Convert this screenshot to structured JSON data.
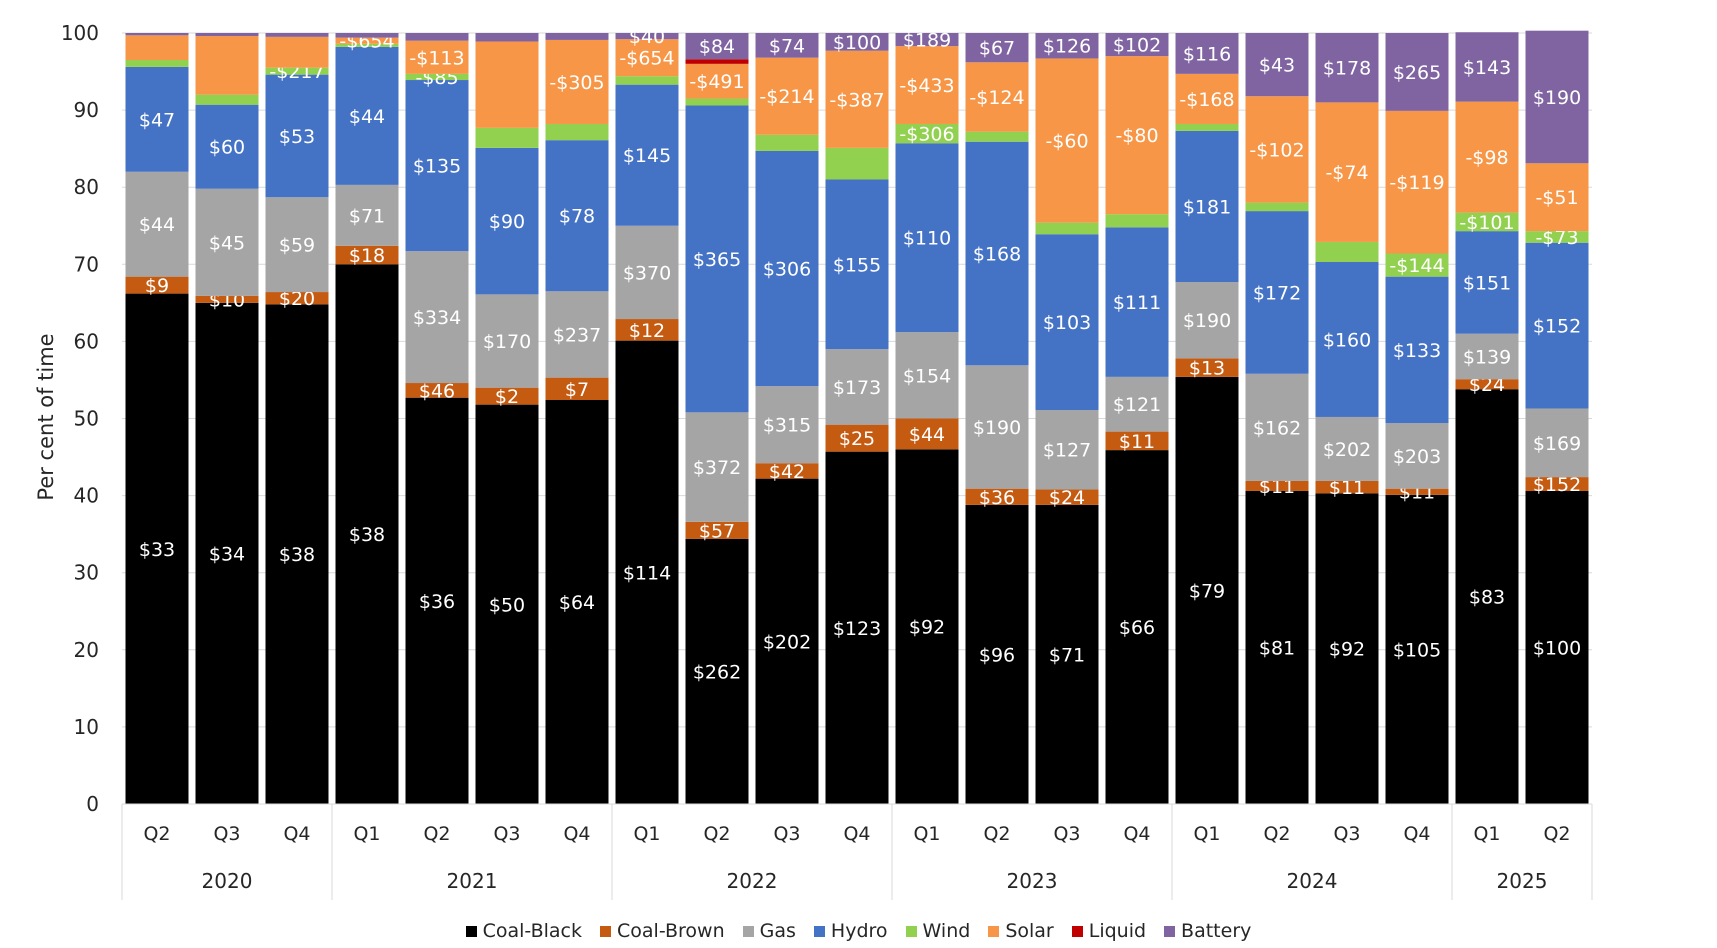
{
  "chart_data": {
    "type": "bar",
    "stacked": true,
    "ylabel": "Per cent of time",
    "ylim": [
      0,
      100
    ],
    "yticks": [
      "0",
      "10",
      "20",
      "30",
      "40",
      "50",
      "60",
      "70",
      "80",
      "90",
      "100"
    ],
    "legend_position": "bottom",
    "categories": [
      {
        "year": "2020",
        "quarter": "Q2"
      },
      {
        "year": "2020",
        "quarter": "Q3"
      },
      {
        "year": "2020",
        "quarter": "Q4"
      },
      {
        "year": "2021",
        "quarter": "Q1"
      },
      {
        "year": "2021",
        "quarter": "Q2"
      },
      {
        "year": "2021",
        "quarter": "Q3"
      },
      {
        "year": "2021",
        "quarter": "Q4"
      },
      {
        "year": "2022",
        "quarter": "Q1"
      },
      {
        "year": "2022",
        "quarter": "Q2"
      },
      {
        "year": "2022",
        "quarter": "Q3"
      },
      {
        "year": "2022",
        "quarter": "Q4"
      },
      {
        "year": "2023",
        "quarter": "Q1"
      },
      {
        "year": "2023",
        "quarter": "Q2"
      },
      {
        "year": "2023",
        "quarter": "Q3"
      },
      {
        "year": "2023",
        "quarter": "Q4"
      },
      {
        "year": "2024",
        "quarter": "Q1"
      },
      {
        "year": "2024",
        "quarter": "Q2"
      },
      {
        "year": "2024",
        "quarter": "Q3"
      },
      {
        "year": "2024",
        "quarter": "Q4"
      },
      {
        "year": "2025",
        "quarter": "Q1"
      },
      {
        "year": "2025",
        "quarter": "Q2"
      }
    ],
    "year_groups": [
      {
        "label": "2020",
        "count": 3
      },
      {
        "label": "2021",
        "count": 4
      },
      {
        "label": "2022",
        "count": 4
      },
      {
        "label": "2023",
        "count": 4
      },
      {
        "label": "2024",
        "count": 4
      },
      {
        "label": "2025",
        "count": 2
      }
    ],
    "series": [
      {
        "name": "Coal-Black",
        "color": "#000000",
        "label_color": "#ffffff",
        "values": [
          66.2,
          65.0,
          64.8,
          70.0,
          52.7,
          51.8,
          52.4,
          60.1,
          34.4,
          42.2,
          45.7,
          46.0,
          38.8,
          38.8,
          45.9,
          55.4,
          40.6,
          40.3,
          40.1,
          53.8,
          40.6
        ],
        "labels": [
          "$33",
          "$34",
          "$38",
          "$38",
          "$36",
          "$50",
          "$64",
          "$114",
          "$262",
          "$202",
          "$123",
          "$92",
          "$96",
          "$71",
          "$66",
          "$79",
          "$81",
          "$92",
          "$105",
          "$83",
          "$100"
        ]
      },
      {
        "name": "Coal-Brown",
        "color": "#c55a11",
        "label_color": "#ffffff",
        "values": [
          2.2,
          0.9,
          1.6,
          2.4,
          1.9,
          2.2,
          2.9,
          2.8,
          2.2,
          2.0,
          3.5,
          4.0,
          2.1,
          2.0,
          2.4,
          2.4,
          1.3,
          1.6,
          0.8,
          1.3,
          1.8
        ],
        "labels": [
          "$9",
          "$10",
          "$20",
          "$18",
          "$46",
          "$2",
          "$7",
          "$12",
          "$57",
          "$42",
          "$25",
          "$44",
          "$36",
          "$24",
          "$11",
          "$13",
          "$11",
          "$11",
          "$11",
          "$24",
          "$152"
        ]
      },
      {
        "name": "Gas",
        "color": "#a5a5a5",
        "label_color": "#ffffff",
        "values": [
          13.6,
          13.9,
          12.3,
          7.9,
          17.1,
          12.1,
          11.2,
          12.1,
          14.2,
          10.0,
          9.8,
          11.2,
          16.0,
          10.3,
          7.1,
          9.9,
          13.9,
          8.3,
          8.5,
          5.9,
          8.9
        ],
        "labels": [
          "$44",
          "$45",
          "$59",
          "$71",
          "$334",
          "$170",
          "$237",
          "$370",
          "$372",
          "$315",
          "$173",
          "$154",
          "$190",
          "$127",
          "$121",
          "$190",
          "$162",
          "$202",
          "$203",
          "$139",
          "$169"
        ]
      },
      {
        "name": "Hydro",
        "color": "#4472c4",
        "label_color": "#ffffff",
        "values": [
          13.6,
          10.9,
          15.9,
          17.9,
          22.2,
          19.0,
          19.6,
          18.3,
          39.8,
          30.5,
          22.0,
          24.5,
          29.0,
          22.8,
          19.4,
          19.6,
          21.1,
          20.1,
          19.0,
          13.3,
          21.5
        ],
        "labels": [
          "$47",
          "$60",
          "$53",
          "$44",
          "$135",
          "$90",
          "$78",
          "$145",
          "$365",
          "$306",
          "$155",
          "$110",
          "$168",
          "$103",
          "$111",
          "$181",
          "$172",
          "$160",
          "$133",
          "$151",
          "$152"
        ]
      },
      {
        "name": "Wind",
        "color": "#92d050",
        "label_color": "#ffffff",
        "values": [
          0.9,
          1.3,
          0.9,
          0.4,
          0.8,
          2.6,
          2.1,
          1.1,
          0.9,
          2.1,
          4.1,
          2.5,
          1.3,
          1.5,
          1.7,
          0.9,
          1.1,
          2.6,
          3.0,
          2.4,
          1.5
        ],
        "labels": [
          "",
          "",
          "-$217",
          "",
          "-$85",
          "",
          "",
          "",
          "",
          "",
          "",
          "-$306",
          "",
          "",
          "",
          "",
          "",
          "",
          "-$144",
          "-$101",
          "-$73"
        ]
      },
      {
        "name": "Solar",
        "color": "#f79646",
        "label_color": "#ffffff",
        "values": [
          3.2,
          7.6,
          4.0,
          0.8,
          4.3,
          11.2,
          10.9,
          4.8,
          4.5,
          10.0,
          12.6,
          10.1,
          9.0,
          21.3,
          20.5,
          6.5,
          13.8,
          18.1,
          18.5,
          14.4,
          8.8
        ],
        "labels": [
          "",
          "",
          "",
          "-$654",
          "-$113",
          "",
          "-$305",
          "-$654",
          "-$491",
          "-$214",
          "-$387",
          "-$433",
          "-$124",
          "-$60",
          "-$80",
          "-$168",
          "-$102",
          "-$74",
          "-$119",
          "-$98",
          "-$51"
        ]
      },
      {
        "name": "Liquid",
        "color": "#c00000",
        "label_color": "#ffffff",
        "values": [
          0,
          0,
          0,
          0,
          0,
          0,
          0,
          0,
          0.6,
          0,
          0,
          0,
          0,
          0,
          0,
          0,
          0,
          0,
          0,
          0,
          0
        ],
        "labels": [
          "",
          "",
          "",
          "",
          "",
          "",
          "",
          "",
          "",
          "",
          "",
          "",
          "",
          "",
          "",
          "",
          "",
          "",
          "",
          "",
          ""
        ]
      },
      {
        "name": "Battery",
        "color": "#8064a2",
        "label_color": "#ffffff",
        "values": [
          0.3,
          0.4,
          0.5,
          0.6,
          1.0,
          1.1,
          0.9,
          0.8,
          3.4,
          3.2,
          2.3,
          1.7,
          3.8,
          3.3,
          3.0,
          5.3,
          8.2,
          9.0,
          10.1,
          9.0,
          17.2
        ],
        "labels": [
          "",
          "",
          "",
          "",
          "",
          "",
          "",
          "$40",
          "$84",
          "$74",
          "$100",
          "$189",
          "$67",
          "$126",
          "$102",
          "$116",
          "$43",
          "$178",
          "$265",
          "$143",
          "$190"
        ]
      }
    ]
  }
}
